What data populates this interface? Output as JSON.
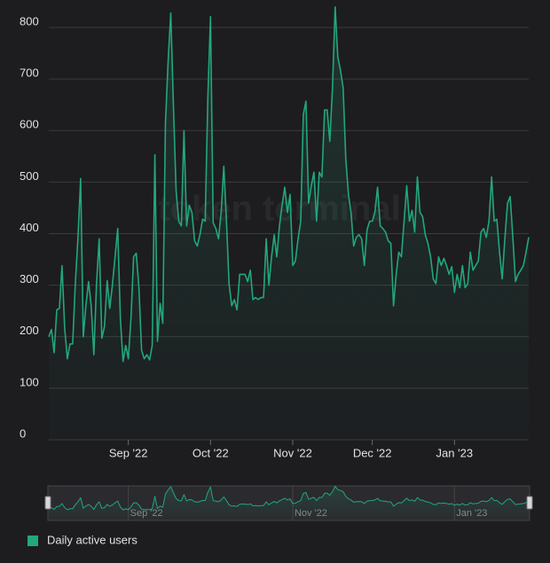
{
  "chart_data": {
    "type": "line",
    "watermark": "token terminal",
    "series": [
      {
        "name": "Daily active users",
        "color": "#22a67d",
        "values": [
          200,
          214,
          169,
          252,
          255,
          338,
          217,
          157,
          186,
          186,
          303,
          393,
          507,
          200,
          260,
          307,
          260,
          165,
          303,
          390,
          197,
          220,
          309,
          255,
          300,
          355,
          410,
          235,
          152,
          183,
          157,
          238,
          355,
          362,
          295,
          174,
          157,
          165,
          155,
          183,
          553,
          191,
          265,
          226,
          614,
          734,
          828,
          648,
          484,
          424,
          415,
          600,
          415,
          455,
          441,
          386,
          376,
          398,
          428,
          424,
          665,
          821,
          421,
          410,
          390,
          441,
          531,
          424,
          303,
          260,
          272,
          252,
          321,
          321,
          321,
          307,
          329,
          272,
          276,
          272,
          276,
          276,
          390,
          300,
          355,
          398,
          355,
          415,
          455,
          490,
          441,
          476,
          338,
          347,
          390,
          424,
          631,
          657,
          459,
          493,
          519,
          424,
          519,
          510,
          640,
          640,
          579,
          683,
          840,
          743,
          717,
          683,
          545,
          476,
          441,
          376,
          393,
          398,
          390,
          338,
          407,
          424,
          424,
          441,
          490,
          415,
          410,
          403,
          386,
          381,
          260,
          321,
          364,
          355,
          424,
          493,
          424,
          445,
          403,
          510,
          441,
          433,
          398,
          381,
          355,
          312,
          303,
          355,
          338,
          352,
          338,
          321,
          336,
          286,
          321,
          295,
          338,
          295,
          303,
          364,
          329,
          338,
          347,
          403,
          410,
          393,
          424,
          510,
          424,
          428,
          364,
          312,
          390,
          459,
          472,
          393,
          307,
          321,
          329,
          338,
          364,
          393
        ]
      }
    ],
    "xlim": [
      0,
      181
    ],
    "xticks": [
      {
        "value": 30,
        "label": "Sep '22"
      },
      {
        "value": 61,
        "label": "Oct '22"
      },
      {
        "value": 92,
        "label": "Nov '22"
      },
      {
        "value": 122,
        "label": "Dec '22"
      },
      {
        "value": 153,
        "label": "Jan '23"
      }
    ],
    "ylim": [
      0,
      800
    ],
    "yticks": [
      0,
      100,
      200,
      300,
      400,
      500,
      600,
      700,
      800
    ],
    "grid": true,
    "navigator": true,
    "legend": "bottom-left"
  }
}
